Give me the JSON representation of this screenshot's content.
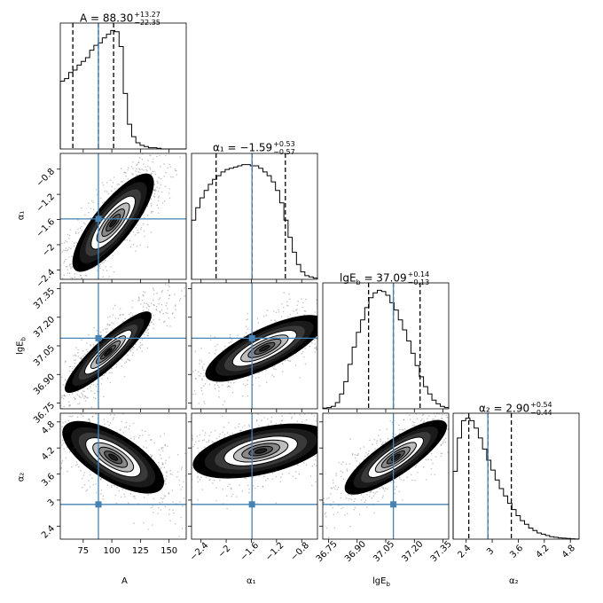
{
  "chart_data": {
    "type": "corner",
    "parameters": [
      {
        "key": "A",
        "label": "A",
        "ticks": [
          75,
          100,
          125,
          150
        ],
        "range": [
          55,
          165
        ],
        "median": 88.3,
        "q16": 65.95,
        "q84": 101.57,
        "title": {
          "pre": "A = 88.30",
          "plus": "+13.27",
          "minus": "−22.35"
        },
        "hist": [
          0.55,
          0.57,
          0.62,
          0.64,
          0.68,
          0.71,
          0.74,
          0.8,
          0.84,
          0.86,
          0.9,
          0.93,
          0.96,
          0.95,
          0.83,
          0.45,
          0.2,
          0.1,
          0.05,
          0.03,
          0.02,
          0.01,
          0.01,
          0.005,
          0,
          0,
          0,
          0,
          0,
          0
        ]
      },
      {
        "key": "alpha1",
        "label": "α₁",
        "ticks": [
          -2.4,
          -2.0,
          -1.6,
          -1.2,
          -0.8
        ],
        "range": [
          -2.55,
          -0.55
        ],
        "median": -1.59,
        "q16": -2.16,
        "q84": -1.06,
        "title": {
          "pre": "α₁ = −1.59",
          "plus": "+0.53",
          "minus": "−0.57"
        },
        "hist": [
          0.48,
          0.58,
          0.66,
          0.72,
          0.77,
          0.81,
          0.84,
          0.87,
          0.89,
          0.9,
          0.91,
          0.92,
          0.93,
          0.93,
          0.92,
          0.92,
          0.9,
          0.87,
          0.84,
          0.79,
          0.72,
          0.62,
          0.48,
          0.34,
          0.22,
          0.12,
          0.06,
          0.03,
          0.02,
          0.01
        ]
      },
      {
        "key": "lgEb",
        "label": "lgE_b",
        "ticks": [
          36.75,
          36.9,
          37.05,
          37.2,
          37.35
        ],
        "range": [
          36.72,
          37.38
        ],
        "median": 37.09,
        "q16": 36.96,
        "q84": 37.23,
        "title": {
          "pre": "lgE",
          "sub": "b",
          "post": " = 37.09",
          "plus": "+0.14",
          "minus": "−0.13"
        },
        "hist": [
          0.005,
          0.01,
          0.02,
          0.05,
          0.12,
          0.22,
          0.36,
          0.5,
          0.62,
          0.72,
          0.82,
          0.9,
          0.94,
          0.96,
          0.95,
          0.92,
          0.86,
          0.8,
          0.72,
          0.64,
          0.55,
          0.45,
          0.35,
          0.26,
          0.18,
          0.12,
          0.07,
          0.04,
          0.02,
          0.01
        ]
      },
      {
        "key": "alpha2",
        "label": "α₂",
        "ticks": [
          2.4,
          3.0,
          3.6,
          4.2,
          4.8
        ],
        "range": [
          2.1,
          5.0
        ],
        "median": 2.9,
        "q16": 2.46,
        "q84": 3.44,
        "title": {
          "pre": "α₂ = 2.90",
          "plus": "+0.54",
          "minus": "−0.44"
        },
        "hist": [
          0.55,
          0.82,
          0.96,
          0.98,
          0.96,
          0.9,
          0.82,
          0.73,
          0.64,
          0.56,
          0.48,
          0.41,
          0.35,
          0.29,
          0.24,
          0.19,
          0.15,
          0.12,
          0.09,
          0.07,
          0.05,
          0.04,
          0.03,
          0.02,
          0.015,
          0.01,
          0.008,
          0.005,
          0.003,
          0.001
        ]
      }
    ],
    "truth_color": "#4682b4",
    "quantile_style": "dashed"
  }
}
